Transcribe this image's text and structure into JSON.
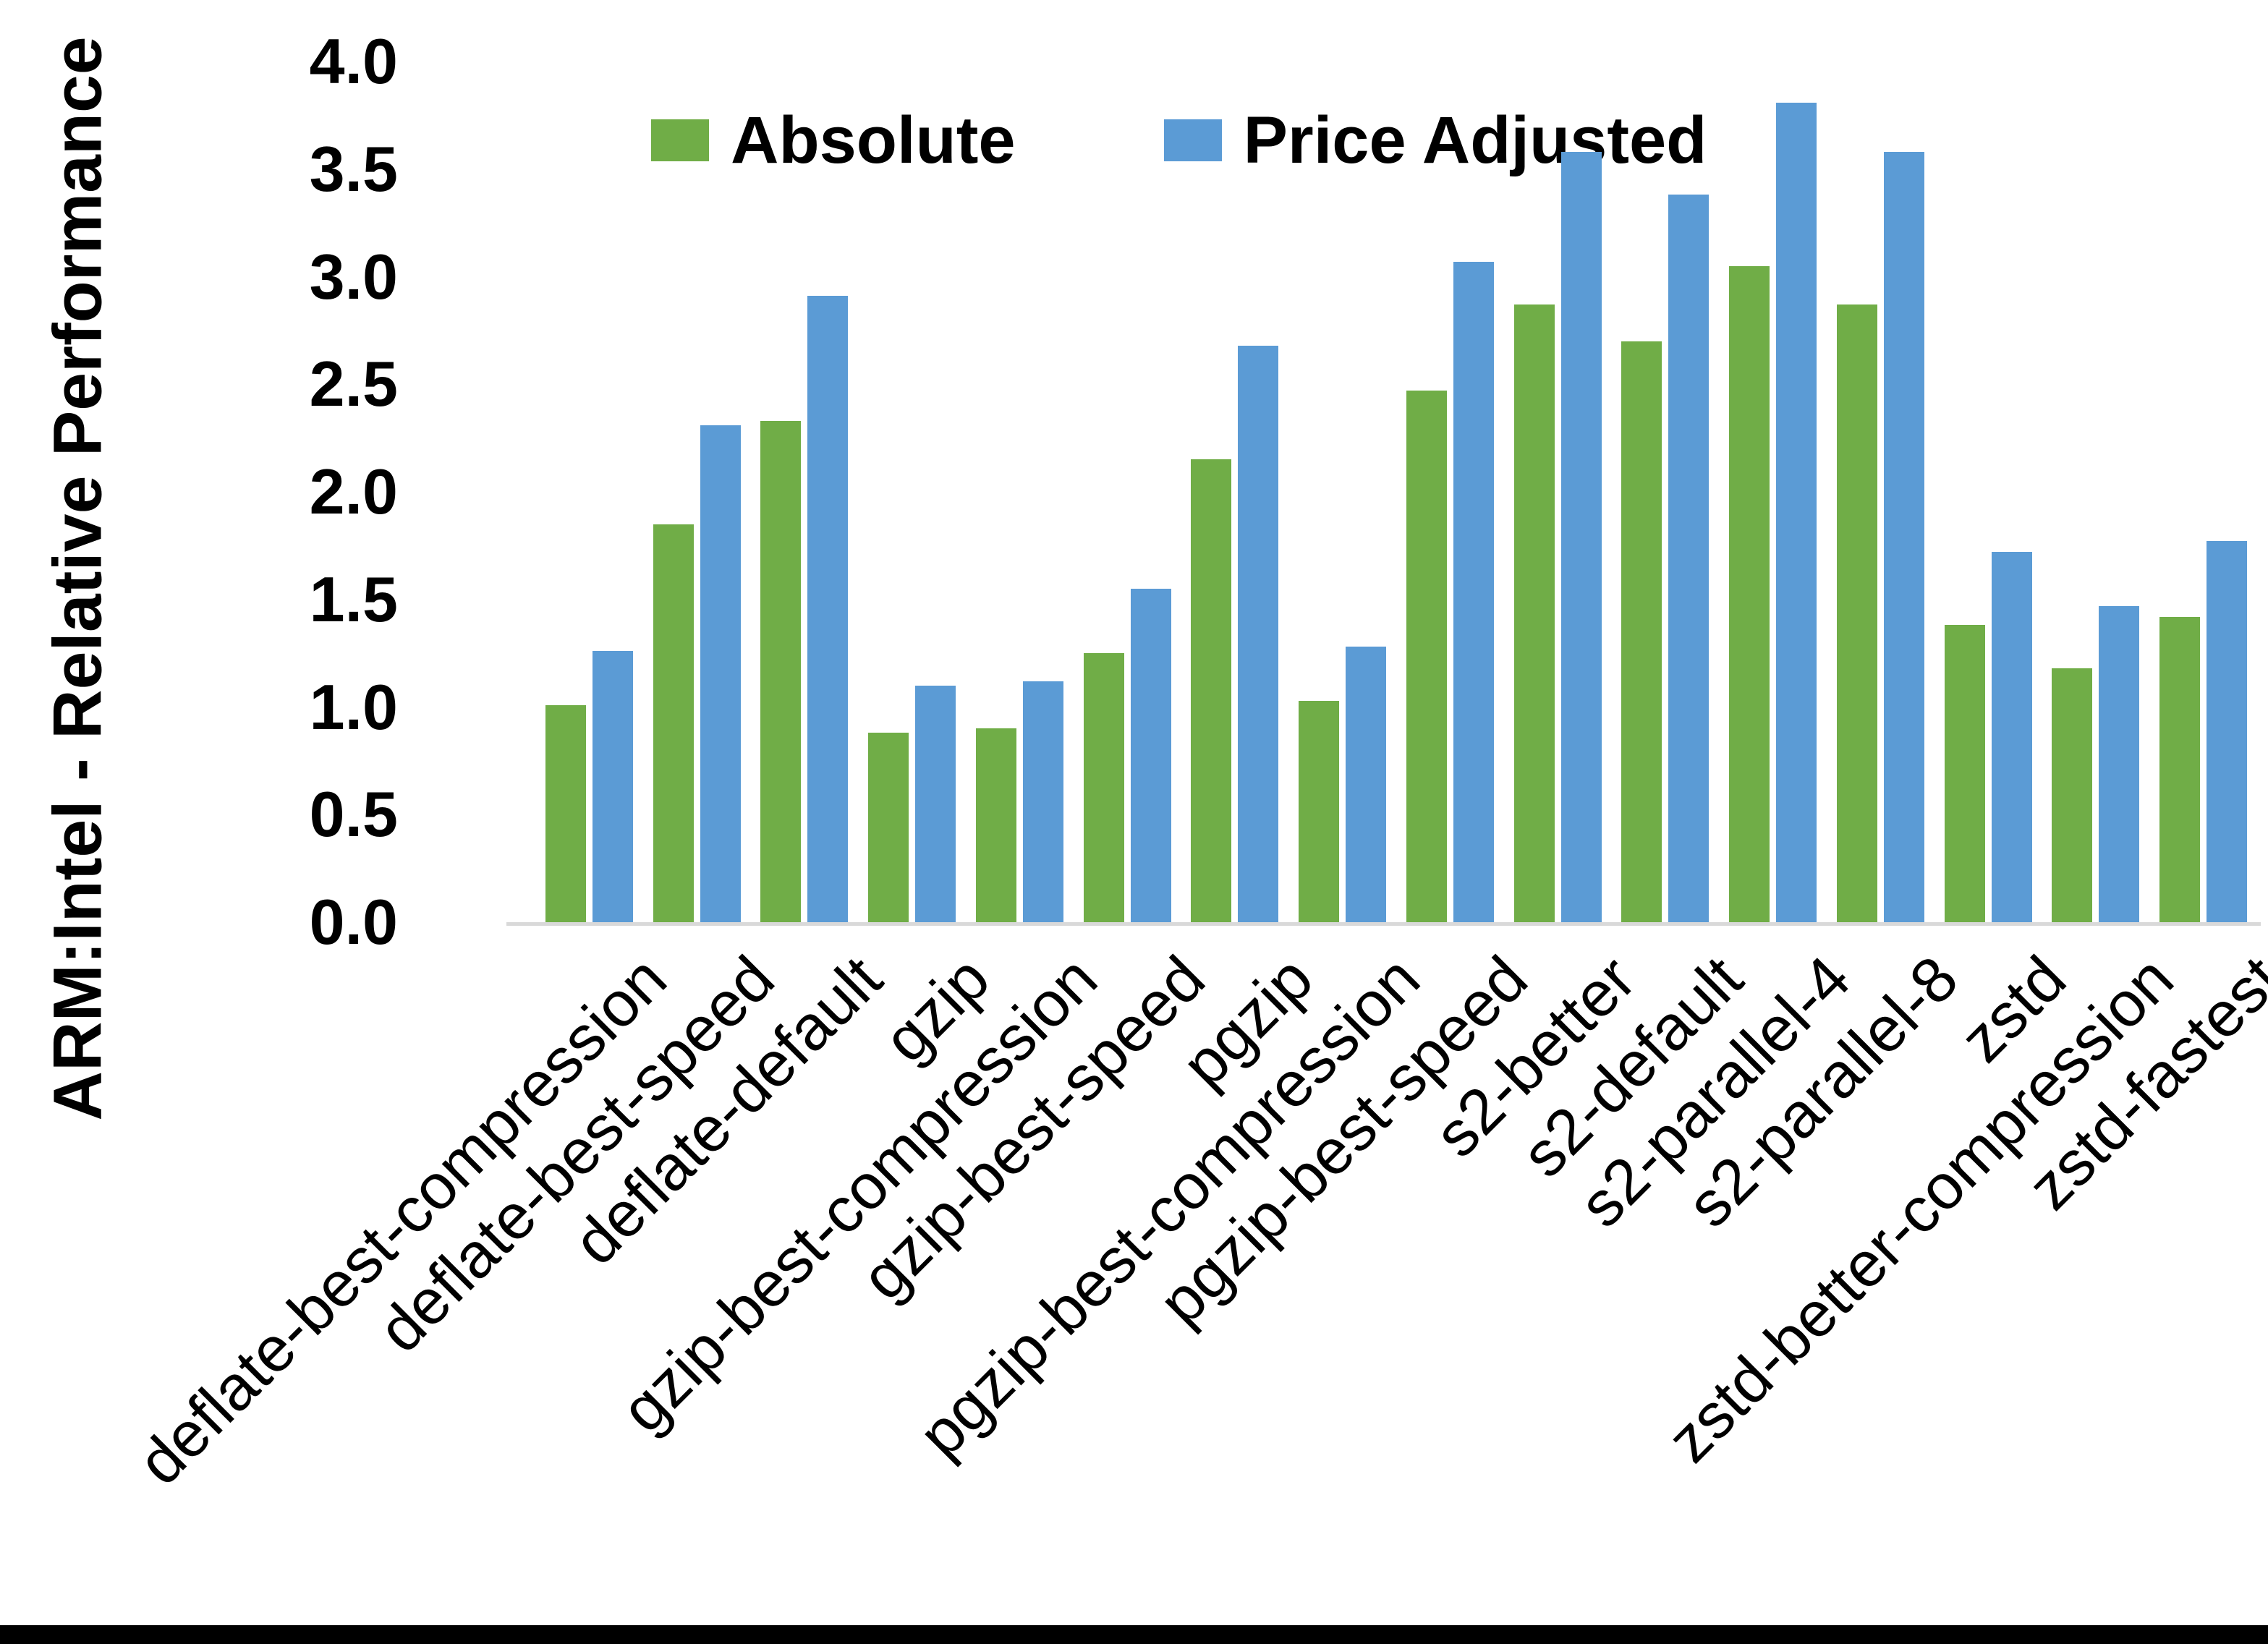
{
  "chart_data": {
    "type": "bar",
    "title": "",
    "xlabel": "",
    "ylabel": "ARM:Intel - Relative Performance",
    "ylim": [
      0.0,
      4.0
    ],
    "ytick_step": 0.5,
    "yticks": [
      "0.0",
      "0.5",
      "1.0",
      "1.5",
      "2.0",
      "2.5",
      "3.0",
      "3.5",
      "4.0"
    ],
    "grid": false,
    "legend_position": "top-center",
    "axis_line_color": "#d9d9d9",
    "categories": [
      "deflate-best-compression",
      "deflate-best-speed",
      "deflate-default",
      "gzip",
      "gzip-best-compression",
      "gzip-best-speed",
      "pgzip",
      "pgzip-best-compression",
      "pgzip-best-speed",
      "s2-better",
      "s2-default",
      "s2-parallel-4",
      "s2-parallel-8",
      "zstd",
      "zstd-better-compression",
      "zstd-fastest"
    ],
    "series": [
      {
        "name": "Absolute",
        "color": "#70ad47",
        "values": [
          1.01,
          1.85,
          2.33,
          0.88,
          0.9,
          1.25,
          2.15,
          1.03,
          2.47,
          2.87,
          2.7,
          3.05,
          2.87,
          1.38,
          1.18,
          1.42
        ]
      },
      {
        "name": "Price Adjusted",
        "color": "#5b9bd5",
        "values": [
          1.26,
          2.31,
          2.91,
          1.1,
          1.12,
          1.55,
          2.68,
          1.28,
          3.07,
          3.58,
          3.38,
          3.81,
          3.58,
          1.72,
          1.47,
          1.77
        ]
      }
    ]
  }
}
